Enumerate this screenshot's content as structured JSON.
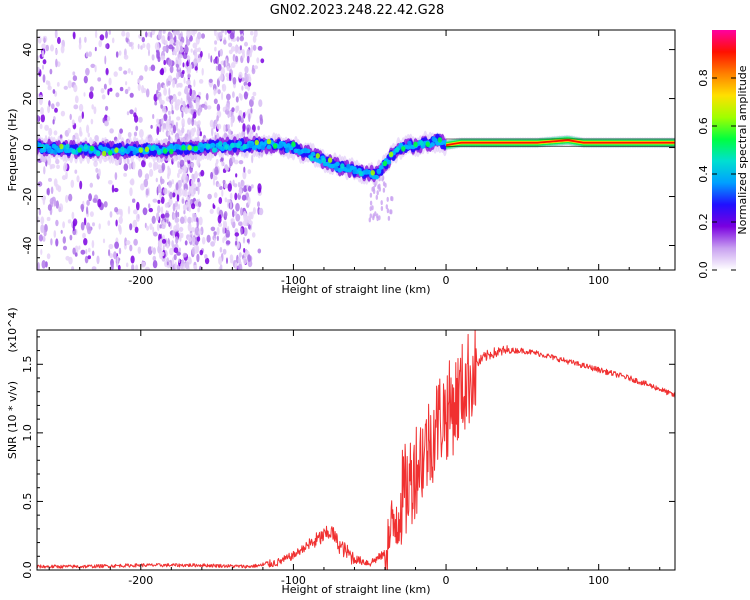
{
  "figure": {
    "title": "GN02.2023.248.22.42.G28"
  },
  "chart_data": [
    {
      "type": "heatmap",
      "xlabel": "Height of straight line (km)",
      "ylabel": "Frequency (Hz)",
      "xlim": [
        -268,
        150
      ],
      "ylim": [
        -50,
        48
      ],
      "xticks": [
        -200,
        -100,
        0,
        100
      ],
      "xtick_labels": [
        "-200",
        "-100",
        "0",
        "100"
      ],
      "yticks": [
        40,
        20,
        0,
        -20,
        -40
      ],
      "ytick_labels": [
        "40",
        "20",
        "0",
        "-20",
        "-40"
      ],
      "ridge": {
        "x": [
          -268,
          -240,
          -200,
          -160,
          -130,
          -110,
          -100,
          -85,
          -70,
          -55,
          -45,
          -38,
          -30,
          -20,
          -10,
          -5,
          0,
          10,
          30,
          60,
          80,
          90,
          110,
          130,
          150
        ],
        "y": [
          0,
          -1,
          -1,
          0,
          1,
          1,
          0,
          -4,
          -8,
          -10,
          -11,
          -5,
          0,
          1,
          2,
          3,
          1,
          2,
          2,
          2,
          3,
          2,
          2,
          2,
          2
        ]
      },
      "colorbar": {
        "label": "Normalized spectral amplitude",
        "range": [
          0,
          1
        ],
        "ticks": [
          0.0,
          0.2,
          0.4,
          0.6,
          0.8
        ],
        "tick_labels": [
          "0.0",
          "0.2",
          "0.4",
          "0.6",
          "0.8"
        ],
        "colors": [
          "#ffffff",
          "#c8a0f0",
          "#7a00e0",
          "#2010ff",
          "#00a0ff",
          "#00e0d0",
          "#00ff40",
          "#a0ff00",
          "#ffe000",
          "#ff8000",
          "#ff1000",
          "#ff00a0"
        ]
      }
    },
    {
      "type": "line",
      "xlabel": "Height of straight line (km)",
      "ylabel": "SNR (10 * v/v)",
      "scale_label": "(x10^4)",
      "xlim": [
        -268,
        150
      ],
      "ylim": [
        0,
        1.75
      ],
      "xticks": [
        -200,
        -100,
        0,
        100
      ],
      "xtick_labels": [
        "-200",
        "-100",
        "0",
        "100"
      ],
      "yticks": [
        0.0,
        0.5,
        1.0,
        1.5
      ],
      "ytick_labels": [
        "0.0",
        "0.5",
        "1.0",
        "1.5"
      ],
      "line_color": "#f03030",
      "series": [
        {
          "x": [
            -268,
            -240,
            -200,
            -160,
            -130,
            -120,
            -110,
            -100,
            -90,
            -80,
            -75,
            -70,
            -60,
            -50,
            -40,
            -35,
            -30,
            -25,
            -20,
            -15,
            -10,
            -5,
            0,
            5,
            10,
            15,
            20,
            25,
            30,
            40,
            50,
            60,
            80,
            100,
            120,
            140,
            150
          ],
          "y": [
            0.02,
            0.02,
            0.03,
            0.03,
            0.02,
            0.03,
            0.05,
            0.1,
            0.18,
            0.25,
            0.28,
            0.18,
            0.08,
            0.05,
            0.12,
            0.3,
            0.5,
            0.6,
            0.75,
            0.85,
            0.95,
            1.1,
            1.15,
            1.2,
            1.3,
            1.4,
            1.5,
            1.55,
            1.58,
            1.6,
            1.6,
            1.58,
            1.52,
            1.46,
            1.4,
            1.32,
            1.27
          ]
        }
      ]
    }
  ]
}
